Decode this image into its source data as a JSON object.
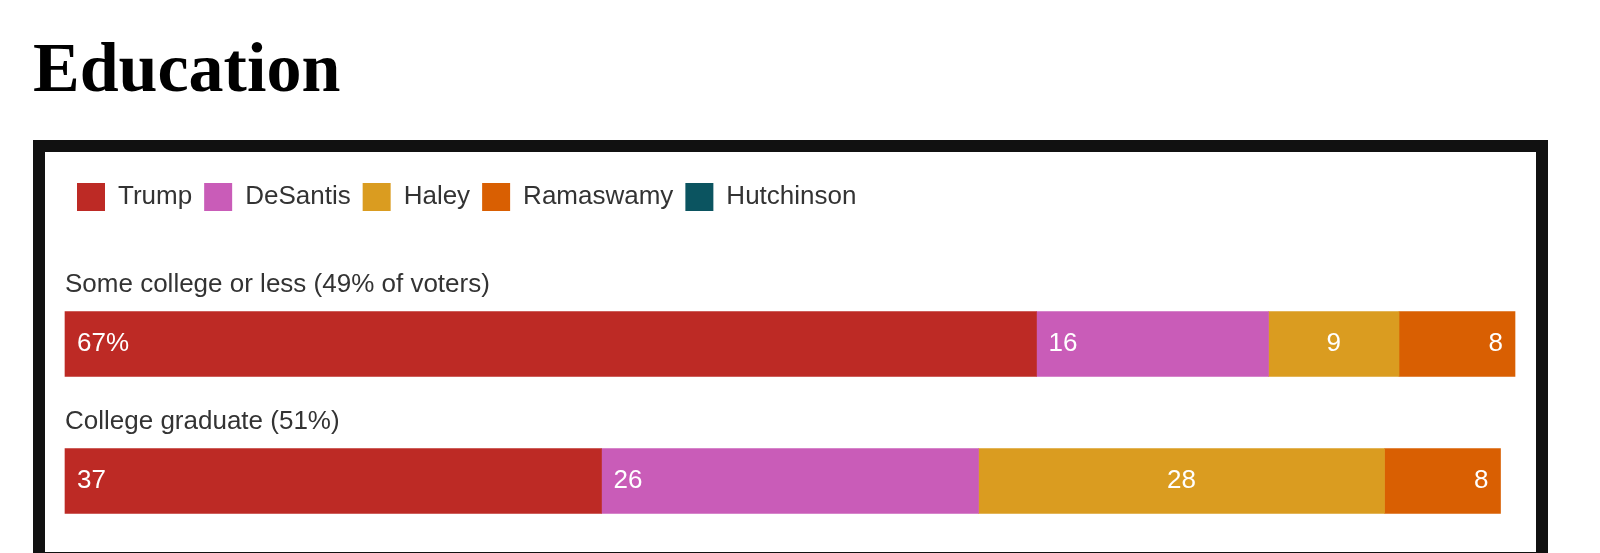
{
  "chart_data": {
    "type": "bar",
    "title": "Education",
    "orientation": "horizontal",
    "stacked": true,
    "categories": [
      "Some college or less (49% of voters)",
      "College graduate (51%)"
    ],
    "series": [
      {
        "name": "Trump",
        "color": "#bd2a25",
        "values": [
          67,
          37
        ],
        "value_labels": [
          "67%",
          "37"
        ]
      },
      {
        "name": "DeSantis",
        "color": "#c95cb8",
        "values": [
          16,
          26
        ],
        "value_labels": [
          "16",
          "26"
        ]
      },
      {
        "name": "Haley",
        "color": "#da9c20",
        "values": [
          9,
          28
        ],
        "value_labels": [
          "9",
          "28"
        ]
      },
      {
        "name": "Ramaswamy",
        "color": "#d95f02",
        "values": [
          8,
          8
        ],
        "value_labels": [
          "8",
          "8"
        ]
      },
      {
        "name": "Hutchinson",
        "color": "#0b5460",
        "values": [
          null,
          null
        ]
      }
    ],
    "xlim": [
      0,
      100
    ],
    "legend": "top left",
    "tick_labels": false
  }
}
